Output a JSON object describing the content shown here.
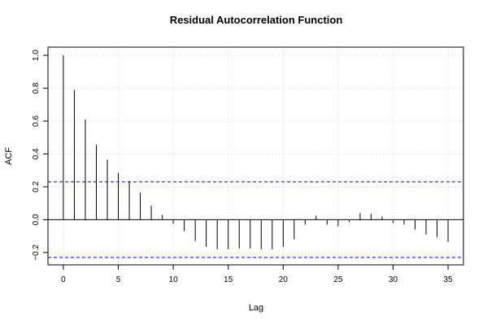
{
  "chart_data": {
    "type": "bar",
    "title": "Residual Autocorrelation Function",
    "xlabel": "Lag",
    "ylabel": "ACF",
    "xlim": [
      -1.4,
      36.4
    ],
    "ylim": [
      -0.275,
      1.05
    ],
    "x_ticks": [
      0,
      5,
      10,
      15,
      20,
      25,
      30,
      35
    ],
    "y_ticks": [
      -0.2,
      0.0,
      0.2,
      0.4,
      0.6,
      0.8,
      1.0
    ],
    "x_tick_labels": [
      "0",
      "5",
      "10",
      "15",
      "20",
      "25",
      "30",
      "35"
    ],
    "y_tick_labels": [
      "−0.2",
      "0.0",
      "0.2",
      "0.4",
      "0.6",
      "0.8",
      "1.0"
    ],
    "grid": true,
    "confidence_bound": 0.23,
    "lags": [
      0,
      1,
      2,
      3,
      4,
      5,
      6,
      7,
      8,
      9,
      10,
      11,
      12,
      13,
      14,
      15,
      16,
      17,
      18,
      19,
      20,
      21,
      22,
      23,
      24,
      25,
      26,
      27,
      28,
      29,
      30,
      31,
      32,
      33,
      34,
      35
    ],
    "values": [
      1.0,
      0.79,
      0.61,
      0.455,
      0.365,
      0.285,
      0.235,
      0.165,
      0.085,
      0.03,
      -0.025,
      -0.07,
      -0.13,
      -0.165,
      -0.18,
      -0.18,
      -0.175,
      -0.175,
      -0.18,
      -0.18,
      -0.165,
      -0.12,
      -0.03,
      0.025,
      -0.03,
      -0.04,
      -0.015,
      0.04,
      0.035,
      0.02,
      -0.02,
      -0.03,
      -0.06,
      -0.09,
      -0.105,
      -0.135
    ],
    "colors": {
      "bars": "#000000",
      "confidence": "#0000ff",
      "grid": "#d3d3d3",
      "zero_line": "#000000"
    }
  }
}
